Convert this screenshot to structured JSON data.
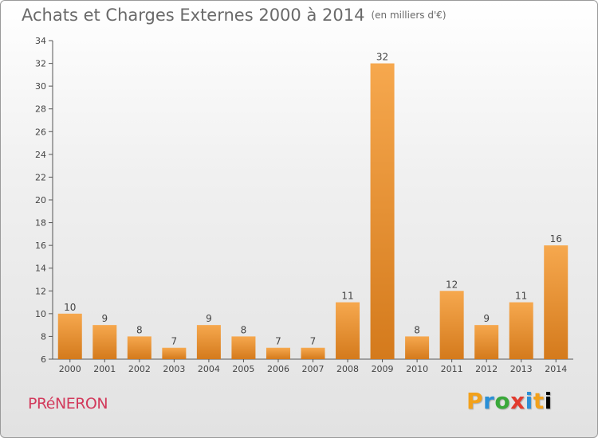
{
  "header": {
    "title": "Achats et Charges Externes 2000 à 2014",
    "unit": "(en milliers d'€)"
  },
  "footer": {
    "commune": "PRéNERON",
    "logo_letters": [
      "P",
      "r",
      "o",
      "x",
      "i",
      "t",
      "i"
    ]
  },
  "colors": {
    "bar_light": "#f6a84e",
    "bar_dark": "#d47a1c",
    "axis": "#555555",
    "grid": "#d8d8d8",
    "text": "#444444"
  },
  "chart_data": {
    "type": "bar",
    "title": "Achats et Charges Externes 2000 à 2014",
    "xlabel": "",
    "ylabel": "",
    "ylim": [
      6,
      34
    ],
    "yticks": [
      6,
      8,
      10,
      12,
      14,
      16,
      18,
      20,
      22,
      24,
      26,
      28,
      30,
      32,
      34
    ],
    "grid": false,
    "categories": [
      "2000",
      "2001",
      "2002",
      "2003",
      "2004",
      "2005",
      "2006",
      "2007",
      "2008",
      "2009",
      "2010",
      "2011",
      "2012",
      "2013",
      "2014"
    ],
    "values": [
      10,
      9,
      8,
      7,
      9,
      8,
      7,
      7,
      11,
      32,
      8,
      12,
      9,
      11,
      16
    ],
    "data_labels": [
      "10",
      "9",
      "8",
      "7",
      "9",
      "8",
      "7",
      "7",
      "11",
      "32",
      "8",
      "12",
      "9",
      "11",
      "16"
    ]
  }
}
